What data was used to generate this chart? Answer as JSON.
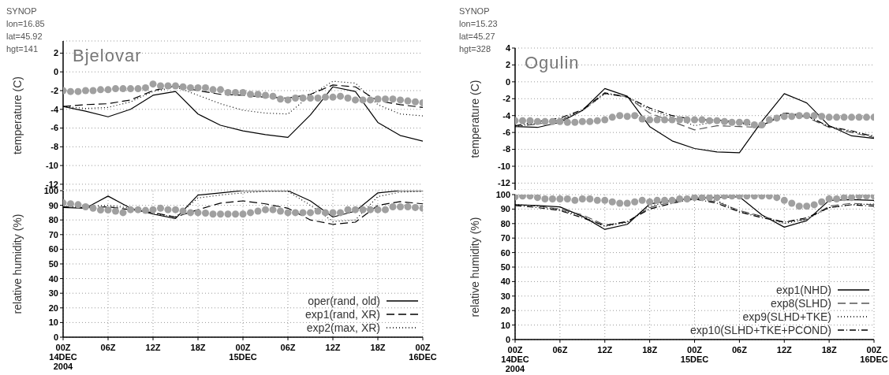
{
  "chart_data": [
    {
      "type": "line",
      "title": "Bjelovar",
      "ylabel": "temperature (C)",
      "annotations": [
        "SYNOP",
        "lon=16.85",
        "lat=45.92",
        "hgt=141"
      ],
      "x": [
        "2004-12-14T00:00",
        "2004-12-14T03:00",
        "2004-12-14T06:00",
        "2004-12-14T09:00",
        "2004-12-14T12:00",
        "2004-12-14T15:00",
        "2004-12-14T18:00",
        "2004-12-14T21:00",
        "2004-12-15T00:00",
        "2004-12-15T03:00",
        "2004-12-15T06:00",
        "2004-12-15T09:00",
        "2004-12-15T12:00",
        "2004-12-15T15:00",
        "2004-12-15T18:00",
        "2004-12-15T21:00",
        "2004-12-16T00:00"
      ],
      "xlim": [
        "2004-12-14T00:00",
        "2004-12-16T00:00"
      ],
      "ylim": [
        -12.6,
        3.3
      ],
      "yticks": [
        -12,
        -10,
        -8,
        -6,
        -4,
        -2,
        0,
        2
      ],
      "tick_labels": "y",
      "grid": "y",
      "marker": "none",
      "series": [
        {
          "color": "#000000",
          "line_style": "solid",
          "values": [
            -3.7,
            -4.2,
            -4.8,
            -4.0,
            -2.5,
            -2.1,
            -4.5,
            -5.7,
            -6.3,
            -6.7,
            -7.0,
            -4.6,
            -1.6,
            -2.1,
            -5.4,
            -6.8,
            -7.4
          ]
        },
        {
          "color": "#000000",
          "line_style": "dashed",
          "values": [
            -3.7,
            -3.5,
            -3.4,
            -3.0,
            -2.0,
            -1.5,
            -2.0,
            -2.4,
            -2.5,
            -2.7,
            -2.8,
            -2.4,
            -1.4,
            -1.6,
            -3.1,
            -3.5,
            -3.8
          ]
        },
        {
          "color": "#000000",
          "line_style": "dotted",
          "values": [
            -3.7,
            -3.9,
            -3.8,
            -3.2,
            -2.1,
            -1.6,
            -2.5,
            -3.4,
            -4.1,
            -4.4,
            -4.5,
            -2.5,
            -1.0,
            -1.2,
            -3.5,
            -4.5,
            -4.7
          ]
        },
        {
          "type": "scatter",
          "color": "#a0a0a0",
          "marker": "circle",
          "x": [
            "2004-12-14T00:00",
            "2004-12-14T01:00",
            "2004-12-14T02:00",
            "2004-12-14T03:00",
            "2004-12-14T04:00",
            "2004-12-14T05:00",
            "2004-12-14T06:00",
            "2004-12-14T07:00",
            "2004-12-14T08:00",
            "2004-12-14T09:00",
            "2004-12-14T10:00",
            "2004-12-14T11:00",
            "2004-12-14T12:00",
            "2004-12-14T13:00",
            "2004-12-14T14:00",
            "2004-12-14T15:00",
            "2004-12-14T16:00",
            "2004-12-14T17:00",
            "2004-12-14T18:00",
            "2004-12-14T19:00",
            "2004-12-14T20:00",
            "2004-12-14T21:00",
            "2004-12-14T22:00",
            "2004-12-14T23:00",
            "2004-12-15T00:00",
            "2004-12-15T01:00",
            "2004-12-15T02:00",
            "2004-12-15T03:00",
            "2004-12-15T04:00",
            "2004-12-15T05:00",
            "2004-12-15T06:00",
            "2004-12-15T07:00",
            "2004-12-15T08:00",
            "2004-12-15T09:00",
            "2004-12-15T10:00",
            "2004-12-15T11:00",
            "2004-12-15T12:00",
            "2004-12-15T13:00",
            "2004-12-15T14:00",
            "2004-12-15T15:00",
            "2004-12-15T16:00",
            "2004-12-15T17:00",
            "2004-12-15T18:00",
            "2004-12-15T19:00",
            "2004-12-15T20:00",
            "2004-12-15T21:00",
            "2004-12-15T22:00",
            "2004-12-15T23:00",
            "2004-12-16T00:00"
          ],
          "values": [
            -2.0,
            -2.1,
            -2.1,
            -2.0,
            -2.0,
            -1.9,
            -1.9,
            -1.8,
            -1.8,
            -1.8,
            -1.8,
            -1.7,
            -1.3,
            -1.5,
            -1.5,
            -1.5,
            -1.6,
            -1.7,
            -1.7,
            -1.7,
            -1.9,
            -1.9,
            -2.2,
            -2.2,
            -2.2,
            -2.4,
            -2.4,
            -2.5,
            -2.6,
            -2.9,
            -3.0,
            -2.8,
            -2.8,
            -2.8,
            -2.8,
            -2.7,
            -2.7,
            -2.6,
            -2.8,
            -3.0,
            -3.0,
            -3.0,
            -2.9,
            -2.9,
            -2.9,
            -3.0,
            -3.1,
            -3.2,
            -3.3
          ]
        }
      ]
    },
    {
      "type": "line",
      "ylabel": "relative humidity (%)",
      "x": [
        "2004-12-14T00:00",
        "2004-12-14T03:00",
        "2004-12-14T06:00",
        "2004-12-14T09:00",
        "2004-12-14T12:00",
        "2004-12-14T15:00",
        "2004-12-14T18:00",
        "2004-12-14T21:00",
        "2004-12-15T00:00",
        "2004-12-15T03:00",
        "2004-12-15T06:00",
        "2004-12-15T09:00",
        "2004-12-15T12:00",
        "2004-12-15T15:00",
        "2004-12-15T18:00",
        "2004-12-15T21:00",
        "2004-12-16T00:00"
      ],
      "xlim": [
        "2004-12-14T00:00",
        "2004-12-16T00:00"
      ],
      "xticks": [
        {
          "value": "2004-12-14T00:00",
          "label": "00Z\n14DEC\n2004"
        },
        {
          "value": "2004-12-14T06:00",
          "label": "06Z"
        },
        {
          "value": "2004-12-14T12:00",
          "label": "12Z"
        },
        {
          "value": "2004-12-14T18:00",
          "label": "18Z"
        },
        {
          "value": "2004-12-15T00:00",
          "label": "00Z\n15DEC"
        },
        {
          "value": "2004-12-15T06:00",
          "label": "06Z"
        },
        {
          "value": "2004-12-15T12:00",
          "label": "12Z"
        },
        {
          "value": "2004-12-15T18:00",
          "label": "18Z"
        },
        {
          "value": "2004-12-16T00:00",
          "label": "00Z\n16DEC"
        }
      ],
      "ylim": [
        0,
        100
      ],
      "yticks": [
        0,
        10,
        20,
        30,
        40,
        50,
        60,
        70,
        80,
        90,
        100
      ],
      "grid": true,
      "legend": "bottom right",
      "marker": "none",
      "series": [
        {
          "name": "oper(rand, old)",
          "color": "#000000",
          "line_style": "solid",
          "values": [
            88.5,
            88,
            96.3,
            88,
            84,
            81,
            97,
            98.5,
            100,
            100,
            100,
            93,
            82,
            86,
            98.5,
            100,
            100
          ]
        },
        {
          "name": "exp1(rand, XR)",
          "color": "#000000",
          "line_style": "dashed",
          "values": [
            89,
            88.5,
            89,
            87,
            85,
            82,
            87,
            91.5,
            93,
            91,
            88,
            80,
            77,
            78.5,
            90,
            92.5,
            91
          ]
        },
        {
          "name": "exp2(max, XR)",
          "color": "#000000",
          "line_style": "dotted",
          "values": [
            89,
            89,
            90,
            88,
            84.5,
            82,
            95,
            97,
            98.5,
            99.5,
            99.5,
            90,
            79,
            80,
            96,
            99,
            99.5
          ]
        },
        {
          "type": "scatter",
          "color": "#a0a0a0",
          "marker": "circle",
          "x": [
            "2004-12-14T00:00",
            "2004-12-14T01:00",
            "2004-12-14T02:00",
            "2004-12-14T03:00",
            "2004-12-14T04:00",
            "2004-12-14T05:00",
            "2004-12-14T06:00",
            "2004-12-14T07:00",
            "2004-12-14T08:00",
            "2004-12-14T09:00",
            "2004-12-14T10:00",
            "2004-12-14T11:00",
            "2004-12-14T12:00",
            "2004-12-14T13:00",
            "2004-12-14T14:00",
            "2004-12-14T15:00",
            "2004-12-14T16:00",
            "2004-12-14T17:00",
            "2004-12-14T18:00",
            "2004-12-14T19:00",
            "2004-12-14T20:00",
            "2004-12-14T21:00",
            "2004-12-14T22:00",
            "2004-12-14T23:00",
            "2004-12-15T00:00",
            "2004-12-15T01:00",
            "2004-12-15T02:00",
            "2004-12-15T03:00",
            "2004-12-15T04:00",
            "2004-12-15T05:00",
            "2004-12-15T06:00",
            "2004-12-15T07:00",
            "2004-12-15T08:00",
            "2004-12-15T09:00",
            "2004-12-15T10:00",
            "2004-12-15T11:00",
            "2004-12-15T12:00",
            "2004-12-15T13:00",
            "2004-12-15T14:00",
            "2004-12-15T15:00",
            "2004-12-15T16:00",
            "2004-12-15T17:00",
            "2004-12-15T18:00",
            "2004-12-15T19:00",
            "2004-12-15T20:00",
            "2004-12-15T21:00",
            "2004-12-15T22:00",
            "2004-12-15T23:00",
            "2004-12-16T00:00"
          ],
          "values": [
            91.6,
            91,
            90.4,
            89,
            88,
            86.8,
            86.8,
            86,
            85,
            87,
            87,
            86.5,
            87,
            88,
            87,
            87,
            86,
            85,
            85,
            84.7,
            84,
            84,
            84,
            84,
            84,
            85,
            86,
            87,
            87,
            86,
            85,
            85,
            85,
            85,
            86,
            85,
            85,
            85,
            87,
            87,
            87,
            87,
            87,
            87,
            89,
            89,
            89,
            88.5,
            88
          ]
        }
      ]
    },
    {
      "type": "line",
      "title": "Ogulin",
      "ylabel": "temperature (C)",
      "annotations": [
        "SYNOP",
        "lon=15.23",
        "lat=45.27",
        "hgt=328"
      ],
      "x": [
        "2004-12-14T00:00",
        "2004-12-14T03:00",
        "2004-12-14T06:00",
        "2004-12-14T09:00",
        "2004-12-14T12:00",
        "2004-12-14T15:00",
        "2004-12-14T18:00",
        "2004-12-14T21:00",
        "2004-12-15T00:00",
        "2004-12-15T03:00",
        "2004-12-15T06:00",
        "2004-12-15T09:00",
        "2004-12-15T12:00",
        "2004-12-15T15:00",
        "2004-12-15T18:00",
        "2004-12-15T21:00",
        "2004-12-16T00:00"
      ],
      "xlim": [
        "2004-12-14T00:00",
        "2004-12-16T00:00"
      ],
      "ylim": [
        -12.8,
        4
      ],
      "yticks": [
        -12,
        -10,
        -8,
        -6,
        -4,
        -2,
        0,
        2,
        4
      ],
      "tick_labels": "y",
      "grid": "y",
      "marker": "none",
      "series": [
        {
          "color": "#000000",
          "line_style": "solid",
          "values": [
            -5.3,
            -5.4,
            -4.8,
            -3.4,
            -0.8,
            -1.7,
            -5.3,
            -7.0,
            -7.9,
            -8.3,
            -8.4,
            -4.7,
            -1.4,
            -2.5,
            -5.2,
            -6.4,
            -6.7
          ]
        },
        {
          "color": "#555555",
          "line_style": "dashed",
          "values": [
            -5.3,
            -5.0,
            -4.6,
            -3.4,
            -1.4,
            -1.8,
            -3.7,
            -4.7,
            -5.7,
            -5.2,
            -5.3,
            -5.4,
            -3.7,
            -4.2,
            -5.4,
            -6.0,
            -6.6
          ]
        },
        {
          "color": "#000000",
          "line_style": "dotted",
          "values": [
            -5.3,
            -4.9,
            -4.5,
            -3.4,
            -1.4,
            -1.8,
            -3.3,
            -4.2,
            -5.2,
            -4.7,
            -4.9,
            -5.3,
            -3.7,
            -4.1,
            -5.3,
            -5.9,
            -6.4
          ]
        },
        {
          "color": "#000000",
          "line_style": "dashdot",
          "values": [
            -5.2,
            -4.7,
            -4.3,
            -3.3,
            -1.3,
            -1.8,
            -3.1,
            -4.0,
            -4.5,
            -4.5,
            -4.8,
            -5.2,
            -3.7,
            -4.0,
            -5.3,
            -5.8,
            -6.5
          ]
        },
        {
          "type": "scatter",
          "color": "#a0a0a0",
          "marker": "circle",
          "x": [
            "2004-12-14T00:00",
            "2004-12-14T01:00",
            "2004-12-14T02:00",
            "2004-12-14T03:00",
            "2004-12-14T04:00",
            "2004-12-14T05:00",
            "2004-12-14T06:00",
            "2004-12-14T07:00",
            "2004-12-14T08:00",
            "2004-12-14T09:00",
            "2004-12-14T10:00",
            "2004-12-14T11:00",
            "2004-12-14T12:00",
            "2004-12-14T13:00",
            "2004-12-14T14:00",
            "2004-12-14T15:00",
            "2004-12-14T16:00",
            "2004-12-14T17:00",
            "2004-12-14T18:00",
            "2004-12-14T19:00",
            "2004-12-14T20:00",
            "2004-12-14T21:00",
            "2004-12-14T22:00",
            "2004-12-14T23:00",
            "2004-12-15T00:00",
            "2004-12-15T01:00",
            "2004-12-15T02:00",
            "2004-12-15T03:00",
            "2004-12-15T04:00",
            "2004-12-15T05:00",
            "2004-12-15T06:00",
            "2004-12-15T07:00",
            "2004-12-15T08:00",
            "2004-12-15T09:00",
            "2004-12-15T10:00",
            "2004-12-15T11:00",
            "2004-12-15T12:00",
            "2004-12-15T13:00",
            "2004-12-15T14:00",
            "2004-12-15T15:00",
            "2004-12-15T16:00",
            "2004-12-15T17:00",
            "2004-12-15T18:00",
            "2004-12-15T19:00",
            "2004-12-15T20:00",
            "2004-12-15T21:00",
            "2004-12-15T22:00",
            "2004-12-15T23:00",
            "2004-12-16T00:00"
          ],
          "values": [
            -4.6,
            -4.6,
            -4.6,
            -4.7,
            -4.7,
            -4.7,
            -4.7,
            -4.8,
            -4.8,
            -4.7,
            -4.7,
            -4.6,
            -4.5,
            -4.2,
            -4.0,
            -4.1,
            -4.0,
            -4.4,
            -4.5,
            -4.5,
            -4.5,
            -4.5,
            -4.5,
            -4.5,
            -4.5,
            -4.5,
            -4.6,
            -4.6,
            -4.7,
            -4.8,
            -4.8,
            -4.8,
            -5.1,
            -5.1,
            -4.5,
            -4.3,
            -4.1,
            -4.1,
            -4.0,
            -4.0,
            -4.0,
            -4.1,
            -4.2,
            -4.2,
            -4.2,
            -4.2,
            -4.2,
            -4.2,
            -4.2
          ]
        }
      ]
    },
    {
      "type": "line",
      "ylabel": "relative humidity (%)",
      "x": [
        "2004-12-14T00:00",
        "2004-12-14T03:00",
        "2004-12-14T06:00",
        "2004-12-14T09:00",
        "2004-12-14T12:00",
        "2004-12-14T15:00",
        "2004-12-14T18:00",
        "2004-12-14T21:00",
        "2004-12-15T00:00",
        "2004-12-15T03:00",
        "2004-12-15T06:00",
        "2004-12-15T09:00",
        "2004-12-15T12:00",
        "2004-12-15T15:00",
        "2004-12-15T18:00",
        "2004-12-15T21:00",
        "2004-12-16T00:00"
      ],
      "xlim": [
        "2004-12-14T00:00",
        "2004-12-16T00:00"
      ],
      "xticks": [
        {
          "value": "2004-12-14T00:00",
          "label": "00Z\n14DEC\n2004"
        },
        {
          "value": "2004-12-14T06:00",
          "label": "06Z"
        },
        {
          "value": "2004-12-14T12:00",
          "label": "12Z"
        },
        {
          "value": "2004-12-14T18:00",
          "label": "18Z"
        },
        {
          "value": "2004-12-15T00:00",
          "label": "00Z\n15DEC"
        },
        {
          "value": "2004-12-15T06:00",
          "label": "06Z"
        },
        {
          "value": "2004-12-15T12:00",
          "label": "12Z"
        },
        {
          "value": "2004-12-15T18:00",
          "label": "18Z"
        },
        {
          "value": "2004-12-16T00:00",
          "label": "00Z\n16DEC"
        }
      ],
      "ylim": [
        0,
        100
      ],
      "yticks": [
        0,
        10,
        20,
        30,
        40,
        50,
        60,
        70,
        80,
        90,
        100
      ],
      "grid": true,
      "legend": "bottom right",
      "marker": "none",
      "series": [
        {
          "name": "exp1(NHD)",
          "color": "#000000",
          "line_style": "solid",
          "values": [
            93,
            92.5,
            91.5,
            85,
            76,
            79.5,
            93.5,
            96,
            97.5,
            98,
            98.5,
            86,
            77.5,
            82,
            96,
            96.5,
            96
          ]
        },
        {
          "name": "exp8(SLHD)",
          "color": "#555555",
          "line_style": "dashed",
          "values": [
            93,
            92,
            90,
            86,
            79,
            81,
            91,
            95,
            97,
            95,
            89,
            85,
            81,
            83,
            92,
            94,
            93
          ]
        },
        {
          "name": "exp9(SLHD+TKE)",
          "color": "#000000",
          "line_style": "dotted",
          "values": [
            93,
            92,
            89.5,
            85,
            78,
            81,
            92,
            95.5,
            97,
            96,
            88,
            85,
            80,
            83,
            91,
            93,
            93.5
          ]
        },
        {
          "name": "exp10(SLHD+TKE+PCOND)",
          "color": "#000000",
          "line_style": "dashdot",
          "values": [
            92.5,
            91,
            89,
            84,
            78.5,
            81.5,
            90,
            94,
            97,
            94,
            88,
            84,
            81,
            84,
            91,
            93,
            92
          ]
        },
        {
          "type": "scatter",
          "color": "#a0a0a0",
          "marker": "circle",
          "x": [
            "2004-12-14T00:00",
            "2004-12-14T01:00",
            "2004-12-14T02:00",
            "2004-12-14T03:00",
            "2004-12-14T04:00",
            "2004-12-14T05:00",
            "2004-12-14T06:00",
            "2004-12-14T07:00",
            "2004-12-14T08:00",
            "2004-12-14T09:00",
            "2004-12-14T10:00",
            "2004-12-14T11:00",
            "2004-12-14T12:00",
            "2004-12-14T13:00",
            "2004-12-14T14:00",
            "2004-12-14T15:00",
            "2004-12-14T16:00",
            "2004-12-14T17:00",
            "2004-12-14T18:00",
            "2004-12-14T19:00",
            "2004-12-14T20:00",
            "2004-12-14T21:00",
            "2004-12-14T22:00",
            "2004-12-14T23:00",
            "2004-12-15T00:00",
            "2004-12-15T01:00",
            "2004-12-15T02:00",
            "2004-12-15T03:00",
            "2004-12-15T04:00",
            "2004-12-15T05:00",
            "2004-12-15T06:00",
            "2004-12-15T07:00",
            "2004-12-15T08:00",
            "2004-12-15T09:00",
            "2004-12-15T10:00",
            "2004-12-15T11:00",
            "2004-12-15T12:00",
            "2004-12-15T13:00",
            "2004-12-15T14:00",
            "2004-12-15T15:00",
            "2004-12-15T16:00",
            "2004-12-15T17:00",
            "2004-12-15T18:00",
            "2004-12-15T19:00",
            "2004-12-15T20:00",
            "2004-12-15T21:00",
            "2004-12-15T22:00",
            "2004-12-15T23:00",
            "2004-12-16T00:00"
          ],
          "values": [
            98.5,
            99,
            99,
            98,
            97,
            97,
            97,
            97,
            96,
            97,
            97,
            96,
            96,
            95,
            94,
            94,
            95,
            96,
            95,
            96,
            96,
            96,
            97,
            97,
            98,
            98,
            98,
            98,
            99,
            99,
            99,
            99,
            99,
            99,
            99,
            98,
            96,
            94,
            92,
            92,
            93,
            95,
            97,
            97,
            98,
            98,
            99,
            99,
            99
          ]
        }
      ]
    }
  ]
}
